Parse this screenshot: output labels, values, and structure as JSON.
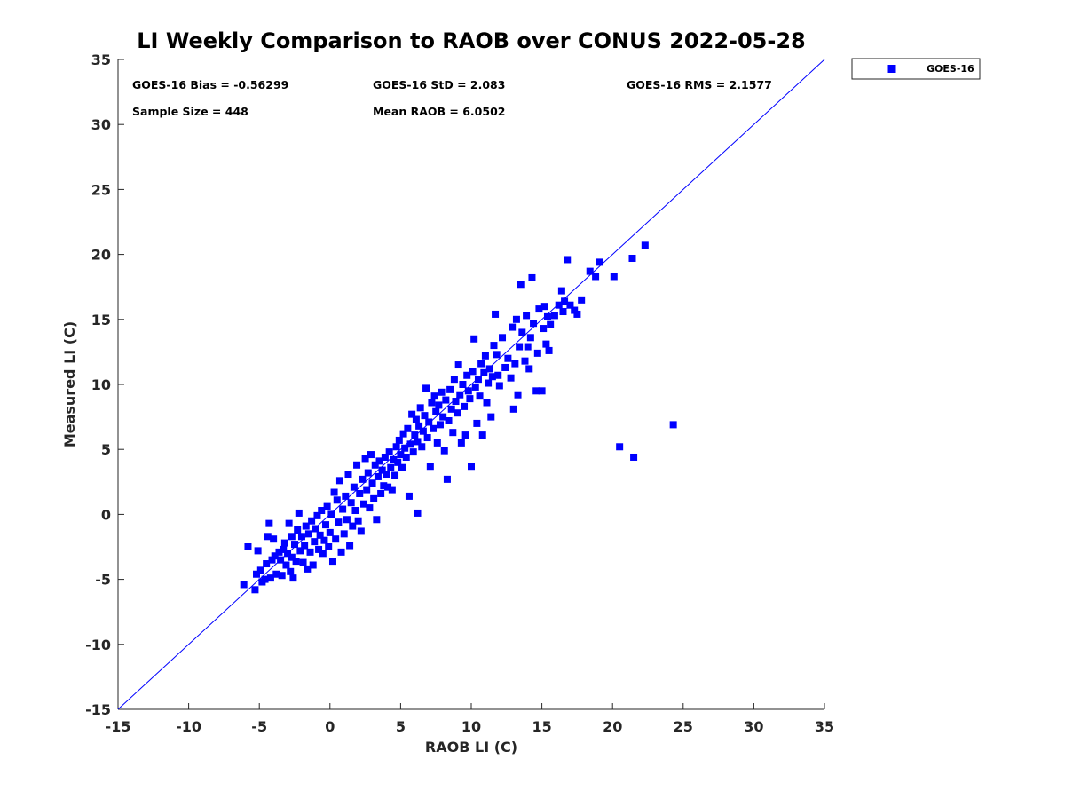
{
  "colors": {
    "marker": "#0000ff",
    "line": "#0000ff",
    "axis": "#262626"
  },
  "stats": {
    "bias": "GOES-16 Bias = -0.56299",
    "std": "GOES-16 StD = 2.083",
    "rms": "GOES-16 RMS = 2.1577",
    "sample": "Sample Size = 448",
    "mean": "Mean RAOB = 6.0502"
  },
  "chart_data": {
    "type": "scatter",
    "title": "LI Weekly Comparison to RAOB over CONUS 2022-05-28",
    "xlabel": "RAOB LI (C)",
    "ylabel": "Measured LI (C)",
    "xlim": [
      -15,
      35
    ],
    "ylim": [
      -15,
      35
    ],
    "xticks": [
      -15,
      -10,
      -5,
      0,
      5,
      10,
      15,
      20,
      25,
      30,
      35
    ],
    "yticks": [
      -15,
      -10,
      -5,
      0,
      5,
      10,
      15,
      20,
      25,
      30,
      35
    ],
    "grid": false,
    "legend": {
      "position": "outside-top-right",
      "entries": [
        "GOES-16"
      ]
    },
    "reference_line": {
      "from": [
        -15,
        -15
      ],
      "to": [
        35,
        35
      ]
    },
    "series": [
      {
        "name": "GOES-16",
        "points": [
          [
            -6.1,
            -5.4
          ],
          [
            -5.8,
            -2.5
          ],
          [
            -5.3,
            -5.8
          ],
          [
            -5.2,
            -4.6
          ],
          [
            -5.1,
            -2.8
          ],
          [
            -4.9,
            -4.3
          ],
          [
            -4.8,
            -5.2
          ],
          [
            -4.6,
            -5.0
          ],
          [
            -4.5,
            -3.8
          ],
          [
            -4.4,
            -1.7
          ],
          [
            -4.3,
            -0.7
          ],
          [
            -4.2,
            -4.9
          ],
          [
            -4.1,
            -3.5
          ],
          [
            -4.0,
            -1.9
          ],
          [
            -3.9,
            -3.2
          ],
          [
            -3.8,
            -4.6
          ],
          [
            -3.6,
            -2.9
          ],
          [
            -3.5,
            -3.5
          ],
          [
            -3.4,
            -4.7
          ],
          [
            -3.3,
            -2.7
          ],
          [
            -3.2,
            -2.2
          ],
          [
            -3.1,
            -3.9
          ],
          [
            -3.0,
            -3.0
          ],
          [
            -2.9,
            -0.7
          ],
          [
            -2.8,
            -4.4
          ],
          [
            -2.7,
            -3.3
          ],
          [
            -2.7,
            -1.7
          ],
          [
            -2.6,
            -4.9
          ],
          [
            -2.5,
            -2.3
          ],
          [
            -2.4,
            -3.6
          ],
          [
            -2.3,
            -1.2
          ],
          [
            -2.2,
            0.1
          ],
          [
            -2.1,
            -2.8
          ],
          [
            -2.0,
            -1.7
          ],
          [
            -1.9,
            -3.7
          ],
          [
            -1.8,
            -2.4
          ],
          [
            -1.7,
            -0.9
          ],
          [
            -1.6,
            -4.2
          ],
          [
            -1.5,
            -1.5
          ],
          [
            -1.4,
            -2.9
          ],
          [
            -1.3,
            -0.5
          ],
          [
            -1.2,
            -3.9
          ],
          [
            -1.1,
            -2.1
          ],
          [
            -1.0,
            -1.1
          ],
          [
            -0.9,
            -0.1
          ],
          [
            -0.8,
            -2.7
          ],
          [
            -0.7,
            -1.6
          ],
          [
            -0.6,
            0.3
          ],
          [
            -0.5,
            -3.0
          ],
          [
            -0.4,
            -2.0
          ],
          [
            -0.3,
            -0.8
          ],
          [
            -0.2,
            0.6
          ],
          [
            -0.1,
            -2.5
          ],
          [
            0.0,
            -1.4
          ],
          [
            0.1,
            0.0
          ],
          [
            0.2,
            -3.6
          ],
          [
            0.3,
            1.7
          ],
          [
            0.4,
            -1.9
          ],
          [
            0.5,
            1.1
          ],
          [
            0.6,
            -0.6
          ],
          [
            0.7,
            2.6
          ],
          [
            0.8,
            -2.9
          ],
          [
            0.9,
            0.4
          ],
          [
            1.0,
            -1.5
          ],
          [
            1.1,
            1.4
          ],
          [
            1.2,
            -0.4
          ],
          [
            1.3,
            3.1
          ],
          [
            1.4,
            -2.4
          ],
          [
            1.5,
            0.9
          ],
          [
            1.6,
            -0.9
          ],
          [
            1.7,
            2.1
          ],
          [
            1.8,
            0.3
          ],
          [
            1.9,
            3.8
          ],
          [
            2.0,
            -0.5
          ],
          [
            2.1,
            1.6
          ],
          [
            2.2,
            -1.3
          ],
          [
            2.3,
            2.7
          ],
          [
            2.4,
            0.8
          ],
          [
            2.5,
            4.3
          ],
          [
            2.6,
            1.9
          ],
          [
            2.7,
            3.2
          ],
          [
            2.8,
            0.5
          ],
          [
            2.9,
            4.6
          ],
          [
            3.0,
            2.4
          ],
          [
            3.1,
            1.2
          ],
          [
            3.2,
            3.8
          ],
          [
            3.3,
            -0.4
          ],
          [
            3.4,
            2.9
          ],
          [
            3.5,
            4.1
          ],
          [
            3.6,
            1.6
          ],
          [
            3.7,
            3.4
          ],
          [
            3.8,
            2.2
          ],
          [
            3.9,
            4.4
          ],
          [
            4.0,
            3.1
          ],
          [
            4.1,
            2.1
          ],
          [
            4.2,
            4.8
          ],
          [
            4.3,
            3.6
          ],
          [
            4.4,
            1.9
          ],
          [
            4.5,
            4.2
          ],
          [
            4.6,
            3.0
          ],
          [
            4.7,
            5.2
          ],
          [
            4.8,
            4.0
          ],
          [
            4.9,
            5.7
          ],
          [
            5.0,
            4.6
          ],
          [
            5.1,
            3.6
          ],
          [
            5.2,
            6.2
          ],
          [
            5.3,
            5.1
          ],
          [
            5.4,
            4.4
          ],
          [
            5.5,
            6.6
          ],
          [
            5.6,
            1.4
          ],
          [
            5.7,
            5.4
          ],
          [
            5.8,
            7.7
          ],
          [
            5.9,
            4.8
          ],
          [
            6.0,
            6.1
          ],
          [
            6.1,
            7.3
          ],
          [
            6.2,
            5.6
          ],
          [
            6.2,
            0.1
          ],
          [
            6.3,
            6.8
          ],
          [
            6.4,
            8.2
          ],
          [
            6.5,
            5.2
          ],
          [
            6.6,
            6.4
          ],
          [
            6.7,
            7.6
          ],
          [
            6.8,
            9.7
          ],
          [
            6.9,
            5.9
          ],
          [
            7.0,
            7.1
          ],
          [
            7.1,
            3.7
          ],
          [
            7.2,
            8.6
          ],
          [
            7.3,
            6.6
          ],
          [
            7.4,
            9.1
          ],
          [
            7.5,
            7.9
          ],
          [
            7.6,
            5.5
          ],
          [
            7.7,
            8.4
          ],
          [
            7.8,
            6.9
          ],
          [
            7.9,
            9.4
          ],
          [
            8.0,
            7.5
          ],
          [
            8.1,
            4.9
          ],
          [
            8.2,
            8.8
          ],
          [
            8.3,
            2.7
          ],
          [
            8.4,
            7.2
          ],
          [
            8.5,
            9.6
          ],
          [
            8.6,
            8.1
          ],
          [
            8.7,
            6.3
          ],
          [
            8.8,
            10.4
          ],
          [
            8.9,
            8.7
          ],
          [
            9.0,
            7.8
          ],
          [
            9.1,
            11.5
          ],
          [
            9.2,
            9.2
          ],
          [
            9.3,
            5.5
          ],
          [
            9.4,
            10.0
          ],
          [
            9.5,
            8.3
          ],
          [
            9.6,
            6.1
          ],
          [
            9.7,
            10.7
          ],
          [
            9.8,
            9.5
          ],
          [
            9.9,
            8.9
          ],
          [
            10.0,
            3.7
          ],
          [
            10.1,
            11.0
          ],
          [
            10.2,
            13.5
          ],
          [
            10.3,
            9.8
          ],
          [
            10.4,
            7.0
          ],
          [
            10.5,
            10.4
          ],
          [
            10.6,
            9.1
          ],
          [
            10.7,
            11.6
          ],
          [
            10.8,
            6.1
          ],
          [
            10.9,
            10.9
          ],
          [
            11.0,
            12.2
          ],
          [
            11.1,
            8.6
          ],
          [
            11.2,
            10.1
          ],
          [
            11.3,
            11.2
          ],
          [
            11.4,
            7.5
          ],
          [
            11.5,
            10.6
          ],
          [
            11.6,
            13.0
          ],
          [
            11.7,
            15.4
          ],
          [
            11.8,
            12.3
          ],
          [
            11.9,
            10.7
          ],
          [
            12.0,
            9.9
          ],
          [
            12.2,
            13.6
          ],
          [
            12.4,
            11.3
          ],
          [
            12.6,
            12.0
          ],
          [
            12.8,
            10.5
          ],
          [
            12.9,
            14.4
          ],
          [
            13.0,
            8.1
          ],
          [
            13.1,
            11.6
          ],
          [
            13.2,
            15.0
          ],
          [
            13.3,
            9.2
          ],
          [
            13.4,
            12.9
          ],
          [
            13.5,
            17.7
          ],
          [
            13.6,
            14.0
          ],
          [
            13.8,
            11.8
          ],
          [
            13.9,
            15.3
          ],
          [
            14.0,
            12.9
          ],
          [
            14.1,
            11.2
          ],
          [
            14.2,
            13.6
          ],
          [
            14.3,
            18.2
          ],
          [
            14.4,
            14.7
          ],
          [
            14.6,
            9.5
          ],
          [
            14.7,
            12.4
          ],
          [
            14.8,
            15.8
          ],
          [
            15.0,
            9.5
          ],
          [
            15.1,
            14.3
          ],
          [
            15.2,
            16.0
          ],
          [
            15.3,
            13.1
          ],
          [
            15.4,
            15.2
          ],
          [
            15.5,
            12.6
          ],
          [
            15.6,
            14.6
          ],
          [
            15.9,
            15.3
          ],
          [
            16.2,
            16.1
          ],
          [
            16.4,
            17.2
          ],
          [
            16.5,
            15.6
          ],
          [
            16.6,
            16.4
          ],
          [
            16.8,
            19.6
          ],
          [
            17.0,
            16.1
          ],
          [
            17.3,
            15.7
          ],
          [
            17.5,
            15.4
          ],
          [
            17.8,
            16.5
          ],
          [
            18.4,
            18.7
          ],
          [
            18.8,
            18.3
          ],
          [
            19.1,
            19.4
          ],
          [
            20.1,
            18.3
          ],
          [
            20.5,
            5.2
          ],
          [
            21.4,
            19.7
          ],
          [
            21.5,
            4.4
          ],
          [
            22.3,
            20.7
          ],
          [
            24.3,
            6.9
          ]
        ]
      }
    ]
  }
}
